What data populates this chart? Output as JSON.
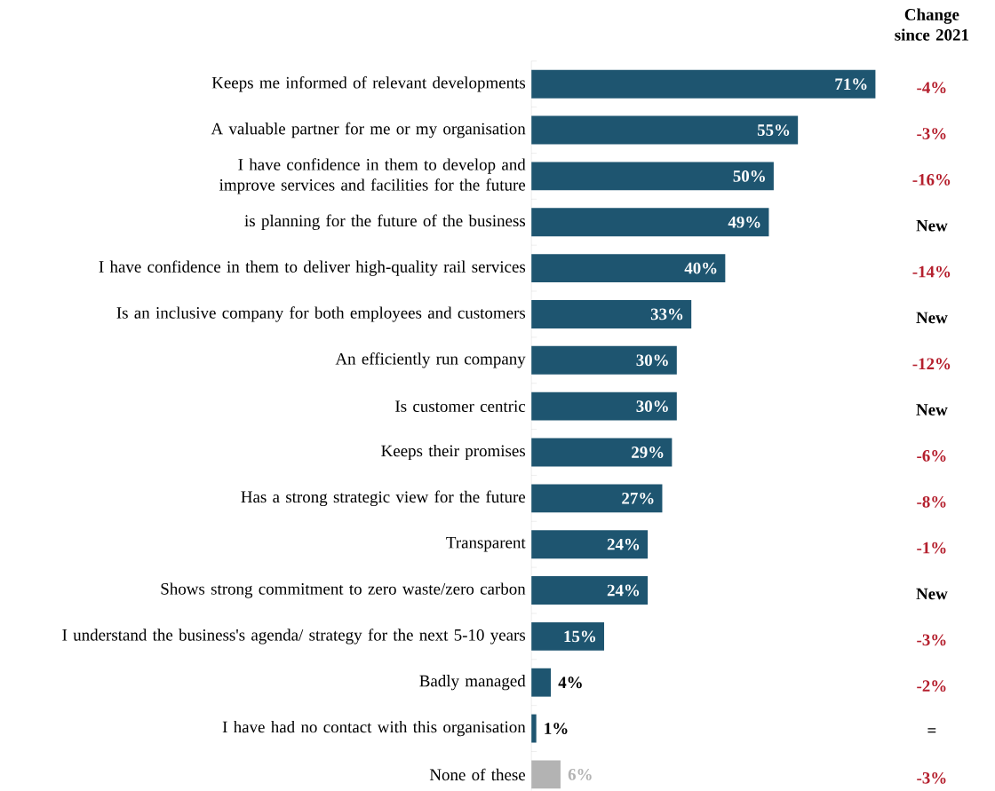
{
  "chart_data": {
    "type": "bar",
    "orientation": "horizontal",
    "categories": [
      "Keeps me informed of relevant developments",
      "A valuable partner for me or my organisation",
      "I have confidence in them to develop and improve services and facilities for the future",
      "is planning for the future of the business",
      "I have confidence in them to deliver high-quality rail services",
      "Is an inclusive company for both employees and customers",
      "An efficiently run company",
      "Is customer centric",
      "Keeps their promises",
      "Has a strong strategic view for the future",
      "Transparent",
      "Shows strong commitment to zero waste/zero carbon",
      "I understand the business's agenda/ strategy for the next 5-10 years",
      "Badly managed",
      "I have had no contact with this organisation",
      "None of these"
    ],
    "values": [
      71,
      55,
      50,
      49,
      40,
      33,
      30,
      30,
      29,
      27,
      24,
      24,
      15,
      4,
      1,
      6
    ],
    "value_labels": [
      "71%",
      "55%",
      "50%",
      "49%",
      "40%",
      "33%",
      "30%",
      "30%",
      "29%",
      "27%",
      "24%",
      "24%",
      "15%",
      "4%",
      "1%",
      "6%"
    ],
    "colors": [
      "#1e5570",
      "#1e5570",
      "#1e5570",
      "#1e5570",
      "#1e5570",
      "#1e5570",
      "#1e5570",
      "#1e5570",
      "#1e5570",
      "#1e5570",
      "#1e5570",
      "#1e5570",
      "#1e5570",
      "#1e5570",
      "#1e5570",
      "#b3b3b3"
    ],
    "annotations": [
      "Change since 2021",
      "-4%",
      "-3%",
      "-16%",
      "New",
      "-14%",
      "New",
      "-12%",
      "New",
      "-6%",
      "-8%",
      "-1%",
      "New",
      "-3%",
      "-2%",
      "=",
      "-3%"
    ]
  }
}
